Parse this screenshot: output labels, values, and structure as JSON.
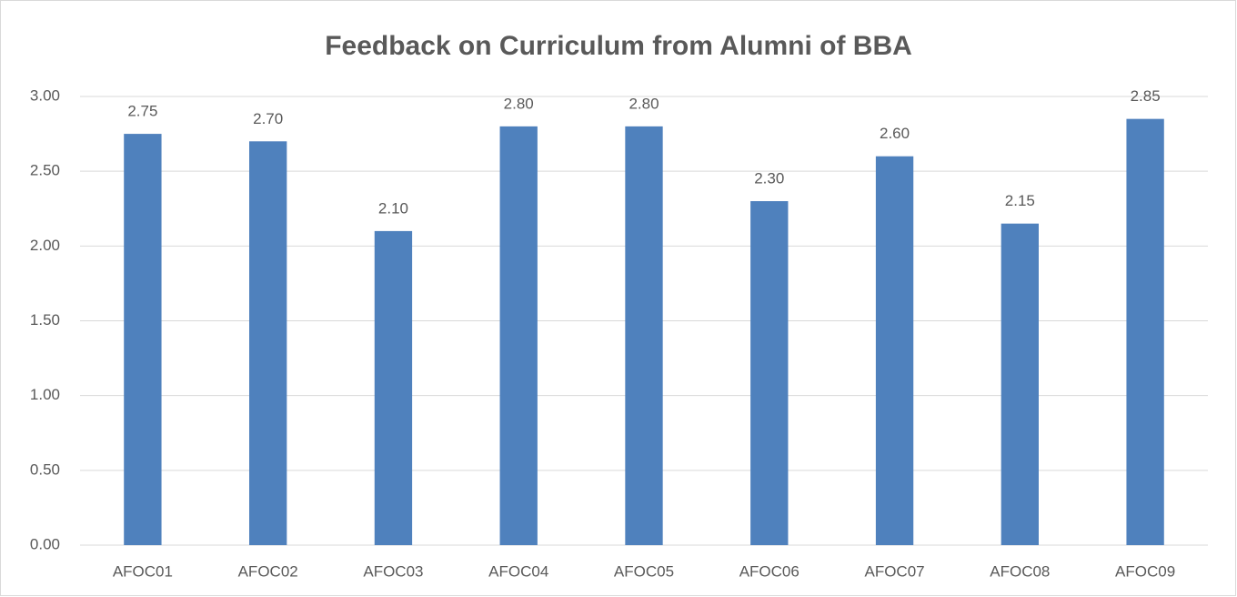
{
  "chart_data": {
    "type": "bar",
    "title": "Feedback on Curriculum from Alumni of BBA",
    "categories": [
      "AFOC01",
      "AFOC02",
      "AFOC03",
      "AFOC04",
      "AFOC05",
      "AFOC06",
      "AFOC07",
      "AFOC08",
      "AFOC09"
    ],
    "values": [
      2.75,
      2.7,
      2.1,
      2.8,
      2.8,
      2.3,
      2.6,
      2.15,
      2.85
    ],
    "value_labels": [
      "2.75",
      "2.70",
      "2.10",
      "2.80",
      "2.80",
      "2.30",
      "2.60",
      "2.15",
      "2.85"
    ],
    "color": "#4f81bd",
    "ylim": [
      0,
      3
    ],
    "yticks": [
      {
        "value": 0,
        "label": "0.00"
      },
      {
        "value": 0.5,
        "label": "0.50"
      },
      {
        "value": 1,
        "label": "1.00"
      },
      {
        "value": 1.5,
        "label": "1.50"
      },
      {
        "value": 2,
        "label": "2.00"
      },
      {
        "value": 2.5,
        "label": "2.50"
      },
      {
        "value": 3,
        "label": "3.00"
      }
    ],
    "grid": true
  }
}
